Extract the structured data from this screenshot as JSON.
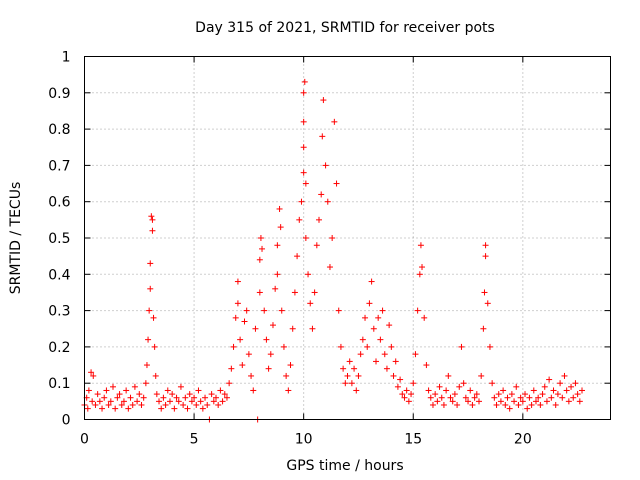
{
  "chart_data": {
    "type": "scatter",
    "title": "Day 315 of 2021, SRMTID for receiver pots",
    "xlabel": "GPS time / hours",
    "ylabel": "SRMTID / TECUs",
    "xlim": [
      0,
      24
    ],
    "ylim": [
      0,
      1
    ],
    "x_ticks": [
      0,
      5,
      10,
      15,
      20
    ],
    "x_tick_labels": [
      "0",
      "5",
      "10",
      "15",
      "20"
    ],
    "y_ticks": [
      0,
      0.1,
      0.2,
      0.3,
      0.4,
      0.5,
      0.6,
      0.7,
      0.8,
      0.9,
      1
    ],
    "y_tick_labels": [
      "0",
      "0.1",
      "0.2",
      "0.3",
      "0.4",
      "0.5",
      "0.6",
      "0.7",
      "0.8",
      "0.9",
      "1"
    ],
    "grid": true,
    "marker": "+",
    "color": "#ff0000",
    "series": [
      {
        "name": "SRMTID",
        "points": [
          [
            0.0,
            0.04
          ],
          [
            0.1,
            0.06
          ],
          [
            0.15,
            0.03
          ],
          [
            0.2,
            0.08
          ],
          [
            0.3,
            0.13
          ],
          [
            0.35,
            0.05
          ],
          [
            0.4,
            0.12
          ],
          [
            0.5,
            0.04
          ],
          [
            0.6,
            0.07
          ],
          [
            0.7,
            0.05
          ],
          [
            0.8,
            0.03
          ],
          [
            0.9,
            0.06
          ],
          [
            1.0,
            0.08
          ],
          [
            1.1,
            0.04
          ],
          [
            1.2,
            0.05
          ],
          [
            1.3,
            0.09
          ],
          [
            1.4,
            0.03
          ],
          [
            1.5,
            0.06
          ],
          [
            1.6,
            0.07
          ],
          [
            1.7,
            0.04
          ],
          [
            1.8,
            0.05
          ],
          [
            1.9,
            0.08
          ],
          [
            2.0,
            0.03
          ],
          [
            2.1,
            0.06
          ],
          [
            2.2,
            0.04
          ],
          [
            2.3,
            0.09
          ],
          [
            2.4,
            0.05
          ],
          [
            2.5,
            0.07
          ],
          [
            2.6,
            0.04
          ],
          [
            2.7,
            0.06
          ],
          [
            2.8,
            0.1
          ],
          [
            2.85,
            0.15
          ],
          [
            2.9,
            0.22
          ],
          [
            2.95,
            0.3
          ],
          [
            3.0,
            0.36
          ],
          [
            3.0,
            0.43
          ],
          [
            3.05,
            0.56
          ],
          [
            3.1,
            0.55
          ],
          [
            3.1,
            0.52
          ],
          [
            3.15,
            0.28
          ],
          [
            3.2,
            0.2
          ],
          [
            3.25,
            0.12
          ],
          [
            3.3,
            0.07
          ],
          [
            3.4,
            0.05
          ],
          [
            3.5,
            0.03
          ],
          [
            3.6,
            0.06
          ],
          [
            3.7,
            0.04
          ],
          [
            3.8,
            0.08
          ],
          [
            3.9,
            0.05
          ],
          [
            4.0,
            0.07
          ],
          [
            4.1,
            0.03
          ],
          [
            4.2,
            0.06
          ],
          [
            4.3,
            0.05
          ],
          [
            4.4,
            0.09
          ],
          [
            4.5,
            0.04
          ],
          [
            4.6,
            0.06
          ],
          [
            4.7,
            0.03
          ],
          [
            4.8,
            0.07
          ],
          [
            4.9,
            0.05
          ],
          [
            5.0,
            0.06
          ],
          [
            5.1,
            0.04
          ],
          [
            5.2,
            0.08
          ],
          [
            5.3,
            0.05
          ],
          [
            5.4,
            0.03
          ],
          [
            5.5,
            0.06
          ],
          [
            5.6,
            0.04
          ],
          [
            5.7,
            0.0
          ],
          [
            5.8,
            0.07
          ],
          [
            5.9,
            0.05
          ],
          [
            6.0,
            0.06
          ],
          [
            6.1,
            0.04
          ],
          [
            6.2,
            0.08
          ],
          [
            6.3,
            0.05
          ],
          [
            6.4,
            0.07
          ],
          [
            6.5,
            0.06
          ],
          [
            6.6,
            0.1
          ],
          [
            6.7,
            0.14
          ],
          [
            6.8,
            0.2
          ],
          [
            6.9,
            0.28
          ],
          [
            7.0,
            0.38
          ],
          [
            7.0,
            0.32
          ],
          [
            7.1,
            0.22
          ],
          [
            7.2,
            0.15
          ],
          [
            7.3,
            0.27
          ],
          [
            7.4,
            0.3
          ],
          [
            7.5,
            0.18
          ],
          [
            7.6,
            0.12
          ],
          [
            7.7,
            0.08
          ],
          [
            7.8,
            0.25
          ],
          [
            7.9,
            0.0
          ],
          [
            8.0,
            0.35
          ],
          [
            8.0,
            0.44
          ],
          [
            8.05,
            0.5
          ],
          [
            8.1,
            0.47
          ],
          [
            8.2,
            0.3
          ],
          [
            8.3,
            0.22
          ],
          [
            8.4,
            0.14
          ],
          [
            8.5,
            0.18
          ],
          [
            8.6,
            0.26
          ],
          [
            8.7,
            0.36
          ],
          [
            8.8,
            0.4
          ],
          [
            8.8,
            0.48
          ],
          [
            8.9,
            0.58
          ],
          [
            8.95,
            0.53
          ],
          [
            9.0,
            0.3
          ],
          [
            9.1,
            0.2
          ],
          [
            9.2,
            0.12
          ],
          [
            9.3,
            0.08
          ],
          [
            9.4,
            0.15
          ],
          [
            9.5,
            0.25
          ],
          [
            9.6,
            0.35
          ],
          [
            9.7,
            0.45
          ],
          [
            9.8,
            0.55
          ],
          [
            9.9,
            0.6
          ],
          [
            10.0,
            0.68
          ],
          [
            10.0,
            0.75
          ],
          [
            10.0,
            0.82
          ],
          [
            10.0,
            0.9
          ],
          [
            10.05,
            0.93
          ],
          [
            10.1,
            0.65
          ],
          [
            10.1,
            0.5
          ],
          [
            10.2,
            0.4
          ],
          [
            10.3,
            0.32
          ],
          [
            10.4,
            0.25
          ],
          [
            10.5,
            0.35
          ],
          [
            10.6,
            0.48
          ],
          [
            10.7,
            0.55
          ],
          [
            10.8,
            0.62
          ],
          [
            10.85,
            0.78
          ],
          [
            10.9,
            0.88
          ],
          [
            11.0,
            0.7
          ],
          [
            11.1,
            0.6
          ],
          [
            11.2,
            0.42
          ],
          [
            11.3,
            0.5
          ],
          [
            11.4,
            0.82
          ],
          [
            11.5,
            0.65
          ],
          [
            11.6,
            0.3
          ],
          [
            11.7,
            0.2
          ],
          [
            11.8,
            0.14
          ],
          [
            11.9,
            0.1
          ],
          [
            12.0,
            0.12
          ],
          [
            12.1,
            0.16
          ],
          [
            12.2,
            0.1
          ],
          [
            12.3,
            0.14
          ],
          [
            12.4,
            0.08
          ],
          [
            12.5,
            0.12
          ],
          [
            12.6,
            0.18
          ],
          [
            12.7,
            0.22
          ],
          [
            12.8,
            0.28
          ],
          [
            12.9,
            0.2
          ],
          [
            13.0,
            0.32
          ],
          [
            13.1,
            0.38
          ],
          [
            13.2,
            0.25
          ],
          [
            13.3,
            0.16
          ],
          [
            13.4,
            0.28
          ],
          [
            13.5,
            0.22
          ],
          [
            13.6,
            0.3
          ],
          [
            13.7,
            0.18
          ],
          [
            13.8,
            0.14
          ],
          [
            13.9,
            0.26
          ],
          [
            14.0,
            0.2
          ],
          [
            14.1,
            0.12
          ],
          [
            14.2,
            0.16
          ],
          [
            14.3,
            0.09
          ],
          [
            14.4,
            0.11
          ],
          [
            14.5,
            0.07
          ],
          [
            14.6,
            0.06
          ],
          [
            14.7,
            0.08
          ],
          [
            14.8,
            0.05
          ],
          [
            14.9,
            0.07
          ],
          [
            15.0,
            0.1
          ],
          [
            15.1,
            0.18
          ],
          [
            15.2,
            0.3
          ],
          [
            15.3,
            0.4
          ],
          [
            15.35,
            0.48
          ],
          [
            15.4,
            0.42
          ],
          [
            15.5,
            0.28
          ],
          [
            15.6,
            0.15
          ],
          [
            15.7,
            0.08
          ],
          [
            15.8,
            0.06
          ],
          [
            15.9,
            0.04
          ],
          [
            16.0,
            0.07
          ],
          [
            16.1,
            0.05
          ],
          [
            16.2,
            0.09
          ],
          [
            16.3,
            0.06
          ],
          [
            16.4,
            0.04
          ],
          [
            16.5,
            0.08
          ],
          [
            16.6,
            0.12
          ],
          [
            16.7,
            0.06
          ],
          [
            16.8,
            0.05
          ],
          [
            16.9,
            0.07
          ],
          [
            17.0,
            0.04
          ],
          [
            17.1,
            0.09
          ],
          [
            17.2,
            0.2
          ],
          [
            17.3,
            0.1
          ],
          [
            17.4,
            0.06
          ],
          [
            17.5,
            0.05
          ],
          [
            17.6,
            0.08
          ],
          [
            17.7,
            0.04
          ],
          [
            17.8,
            0.06
          ],
          [
            17.9,
            0.07
          ],
          [
            18.0,
            0.05
          ],
          [
            18.1,
            0.12
          ],
          [
            18.2,
            0.25
          ],
          [
            18.25,
            0.35
          ],
          [
            18.3,
            0.45
          ],
          [
            18.3,
            0.48
          ],
          [
            18.4,
            0.32
          ],
          [
            18.5,
            0.2
          ],
          [
            18.6,
            0.1
          ],
          [
            18.7,
            0.06
          ],
          [
            18.8,
            0.04
          ],
          [
            18.9,
            0.07
          ],
          [
            19.0,
            0.05
          ],
          [
            19.1,
            0.08
          ],
          [
            19.2,
            0.04
          ],
          [
            19.3,
            0.06
          ],
          [
            19.4,
            0.03
          ],
          [
            19.5,
            0.07
          ],
          [
            19.6,
            0.05
          ],
          [
            19.7,
            0.09
          ],
          [
            19.8,
            0.04
          ],
          [
            19.9,
            0.06
          ],
          [
            20.0,
            0.05
          ],
          [
            20.1,
            0.07
          ],
          [
            20.2,
            0.03
          ],
          [
            20.3,
            0.06
          ],
          [
            20.4,
            0.04
          ],
          [
            20.5,
            0.08
          ],
          [
            20.6,
            0.05
          ],
          [
            20.7,
            0.06
          ],
          [
            20.8,
            0.04
          ],
          [
            20.9,
            0.07
          ],
          [
            21.0,
            0.09
          ],
          [
            21.1,
            0.05
          ],
          [
            21.2,
            0.11
          ],
          [
            21.3,
            0.06
          ],
          [
            21.4,
            0.08
          ],
          [
            21.5,
            0.04
          ],
          [
            21.6,
            0.07
          ],
          [
            21.7,
            0.1
          ],
          [
            21.8,
            0.06
          ],
          [
            21.9,
            0.12
          ],
          [
            22.0,
            0.08
          ],
          [
            22.1,
            0.05
          ],
          [
            22.2,
            0.09
          ],
          [
            22.3,
            0.06
          ],
          [
            22.4,
            0.1
          ],
          [
            22.5,
            0.07
          ],
          [
            22.6,
            0.05
          ],
          [
            22.7,
            0.08
          ]
        ]
      }
    ]
  }
}
